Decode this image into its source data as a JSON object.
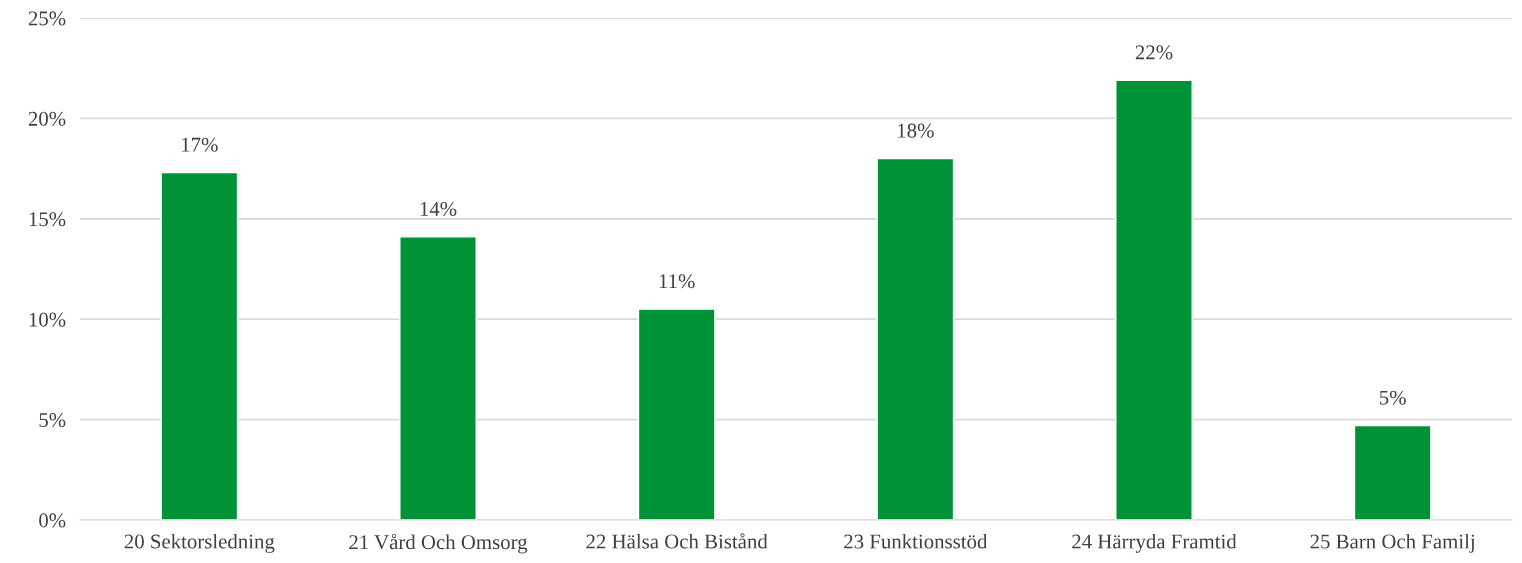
{
  "chart_data": {
    "type": "bar",
    "categories": [
      "20 Sektorsledning",
      "21 Vård Och Omsorg",
      "22 Hälsa Och Bistånd",
      "23 Funktionsstöd",
      "24 Härryda Framtid",
      "25 Barn Och Familj"
    ],
    "series": [
      {
        "color": "#009237",
        "values": [
          17.3,
          14.1,
          10.5,
          18.0,
          21.9,
          4.7
        ],
        "value_labels": [
          "17%",
          "14%",
          "11%",
          "18%",
          "22%",
          "5%"
        ]
      }
    ],
    "ylim": [
      0,
      25
    ],
    "yticks": [
      {
        "value": 0,
        "label": "0%"
      },
      {
        "value": 5,
        "label": "5%"
      },
      {
        "value": 10,
        "label": "10%"
      },
      {
        "value": 15,
        "label": "15%"
      },
      {
        "value": 20,
        "label": "20%"
      },
      {
        "value": 25,
        "label": "25%"
      }
    ],
    "grid": "y"
  }
}
